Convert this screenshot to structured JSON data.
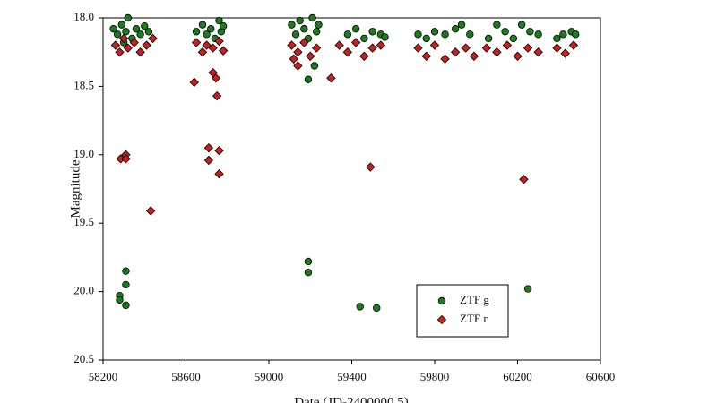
{
  "chart_data": {
    "type": "scatter",
    "x_label": "Date (JD-2400000.5)",
    "y_label": "Magnitude",
    "xlim": [
      58200,
      60600
    ],
    "xticks": [
      58200,
      58600,
      59000,
      59400,
      59800,
      60200,
      60600
    ],
    "ylim": [
      18.0,
      20.5
    ],
    "y_inverted": true,
    "yticks": [
      {
        "value": 18.0,
        "label": "18.0"
      },
      18.5,
      {
        "value": 19.0,
        "label": "19.0"
      },
      19.5,
      {
        "value": 20.0,
        "label": "20.0"
      },
      20.5
    ],
    "series": [
      {
        "name": "ZTF g",
        "color": "#1e7a1e",
        "marker": "circle",
        "x": [
          58250,
          58270,
          58290,
          58310,
          58320,
          58340,
          58360,
          58380,
          58400,
          58420,
          58300,
          58650,
          58680,
          58700,
          58720,
          58740,
          58760,
          58770,
          58780,
          59110,
          59130,
          59150,
          59170,
          59190,
          59210,
          59230,
          59240,
          59380,
          59420,
          59460,
          59500,
          59540,
          59560,
          59720,
          59760,
          59800,
          59850,
          59900,
          59930,
          59970,
          60060,
          60100,
          60140,
          60180,
          60220,
          60260,
          60300,
          60390,
          60420,
          60460,
          60480,
          58280,
          58280,
          58310,
          58310,
          58310,
          59190,
          59190,
          59190,
          59440,
          59520,
          60250,
          59220
        ],
        "values": [
          18.08,
          18.12,
          18.05,
          18.1,
          18.0,
          18.15,
          18.08,
          18.12,
          18.06,
          18.1,
          18.18,
          18.1,
          18.05,
          18.12,
          18.08,
          18.15,
          18.02,
          18.1,
          18.06,
          18.05,
          18.12,
          18.02,
          18.08,
          18.15,
          18.0,
          18.1,
          18.05,
          18.12,
          18.08,
          18.15,
          18.1,
          18.12,
          18.14,
          18.12,
          18.15,
          18.1,
          18.12,
          18.08,
          18.05,
          18.12,
          18.15,
          18.05,
          18.1,
          18.15,
          18.05,
          18.1,
          18.12,
          18.15,
          18.12,
          18.1,
          18.12,
          20.03,
          20.06,
          19.85,
          19.95,
          20.1,
          19.78,
          19.86,
          18.45,
          20.11,
          20.12,
          19.98,
          18.35
        ]
      },
      {
        "name": "ZTF r",
        "color": "#c8201e",
        "marker": "diamond",
        "x": [
          58260,
          58280,
          58300,
          58320,
          58350,
          58380,
          58410,
          58440,
          58650,
          58680,
          58700,
          58730,
          58760,
          58780,
          59110,
          59140,
          59170,
          59200,
          59230,
          59340,
          59380,
          59420,
          59460,
          59500,
          59540,
          59720,
          59760,
          59800,
          59850,
          59900,
          59950,
          59990,
          60050,
          60100,
          60150,
          60200,
          60250,
          60300,
          60390,
          60430,
          60470,
          58285,
          58310,
          58310,
          58430,
          58640,
          58730,
          58745,
          58750,
          58710,
          58710,
          58760,
          58760,
          59300,
          59490,
          60230,
          59140,
          59120
        ],
        "values": [
          18.2,
          18.25,
          18.15,
          18.22,
          18.18,
          18.25,
          18.2,
          18.15,
          18.18,
          18.25,
          18.2,
          18.22,
          18.17,
          18.24,
          18.2,
          18.25,
          18.18,
          18.28,
          18.22,
          18.2,
          18.25,
          18.18,
          18.28,
          18.22,
          18.2,
          18.22,
          18.28,
          18.2,
          18.3,
          18.25,
          18.22,
          18.28,
          18.22,
          18.25,
          18.2,
          18.28,
          18.22,
          18.25,
          18.22,
          18.26,
          18.2,
          19.03,
          19.0,
          19.03,
          19.41,
          18.47,
          18.4,
          18.44,
          18.57,
          18.95,
          19.04,
          18.97,
          19.14,
          18.44,
          19.09,
          19.18,
          18.35,
          18.3
        ]
      }
    ]
  }
}
